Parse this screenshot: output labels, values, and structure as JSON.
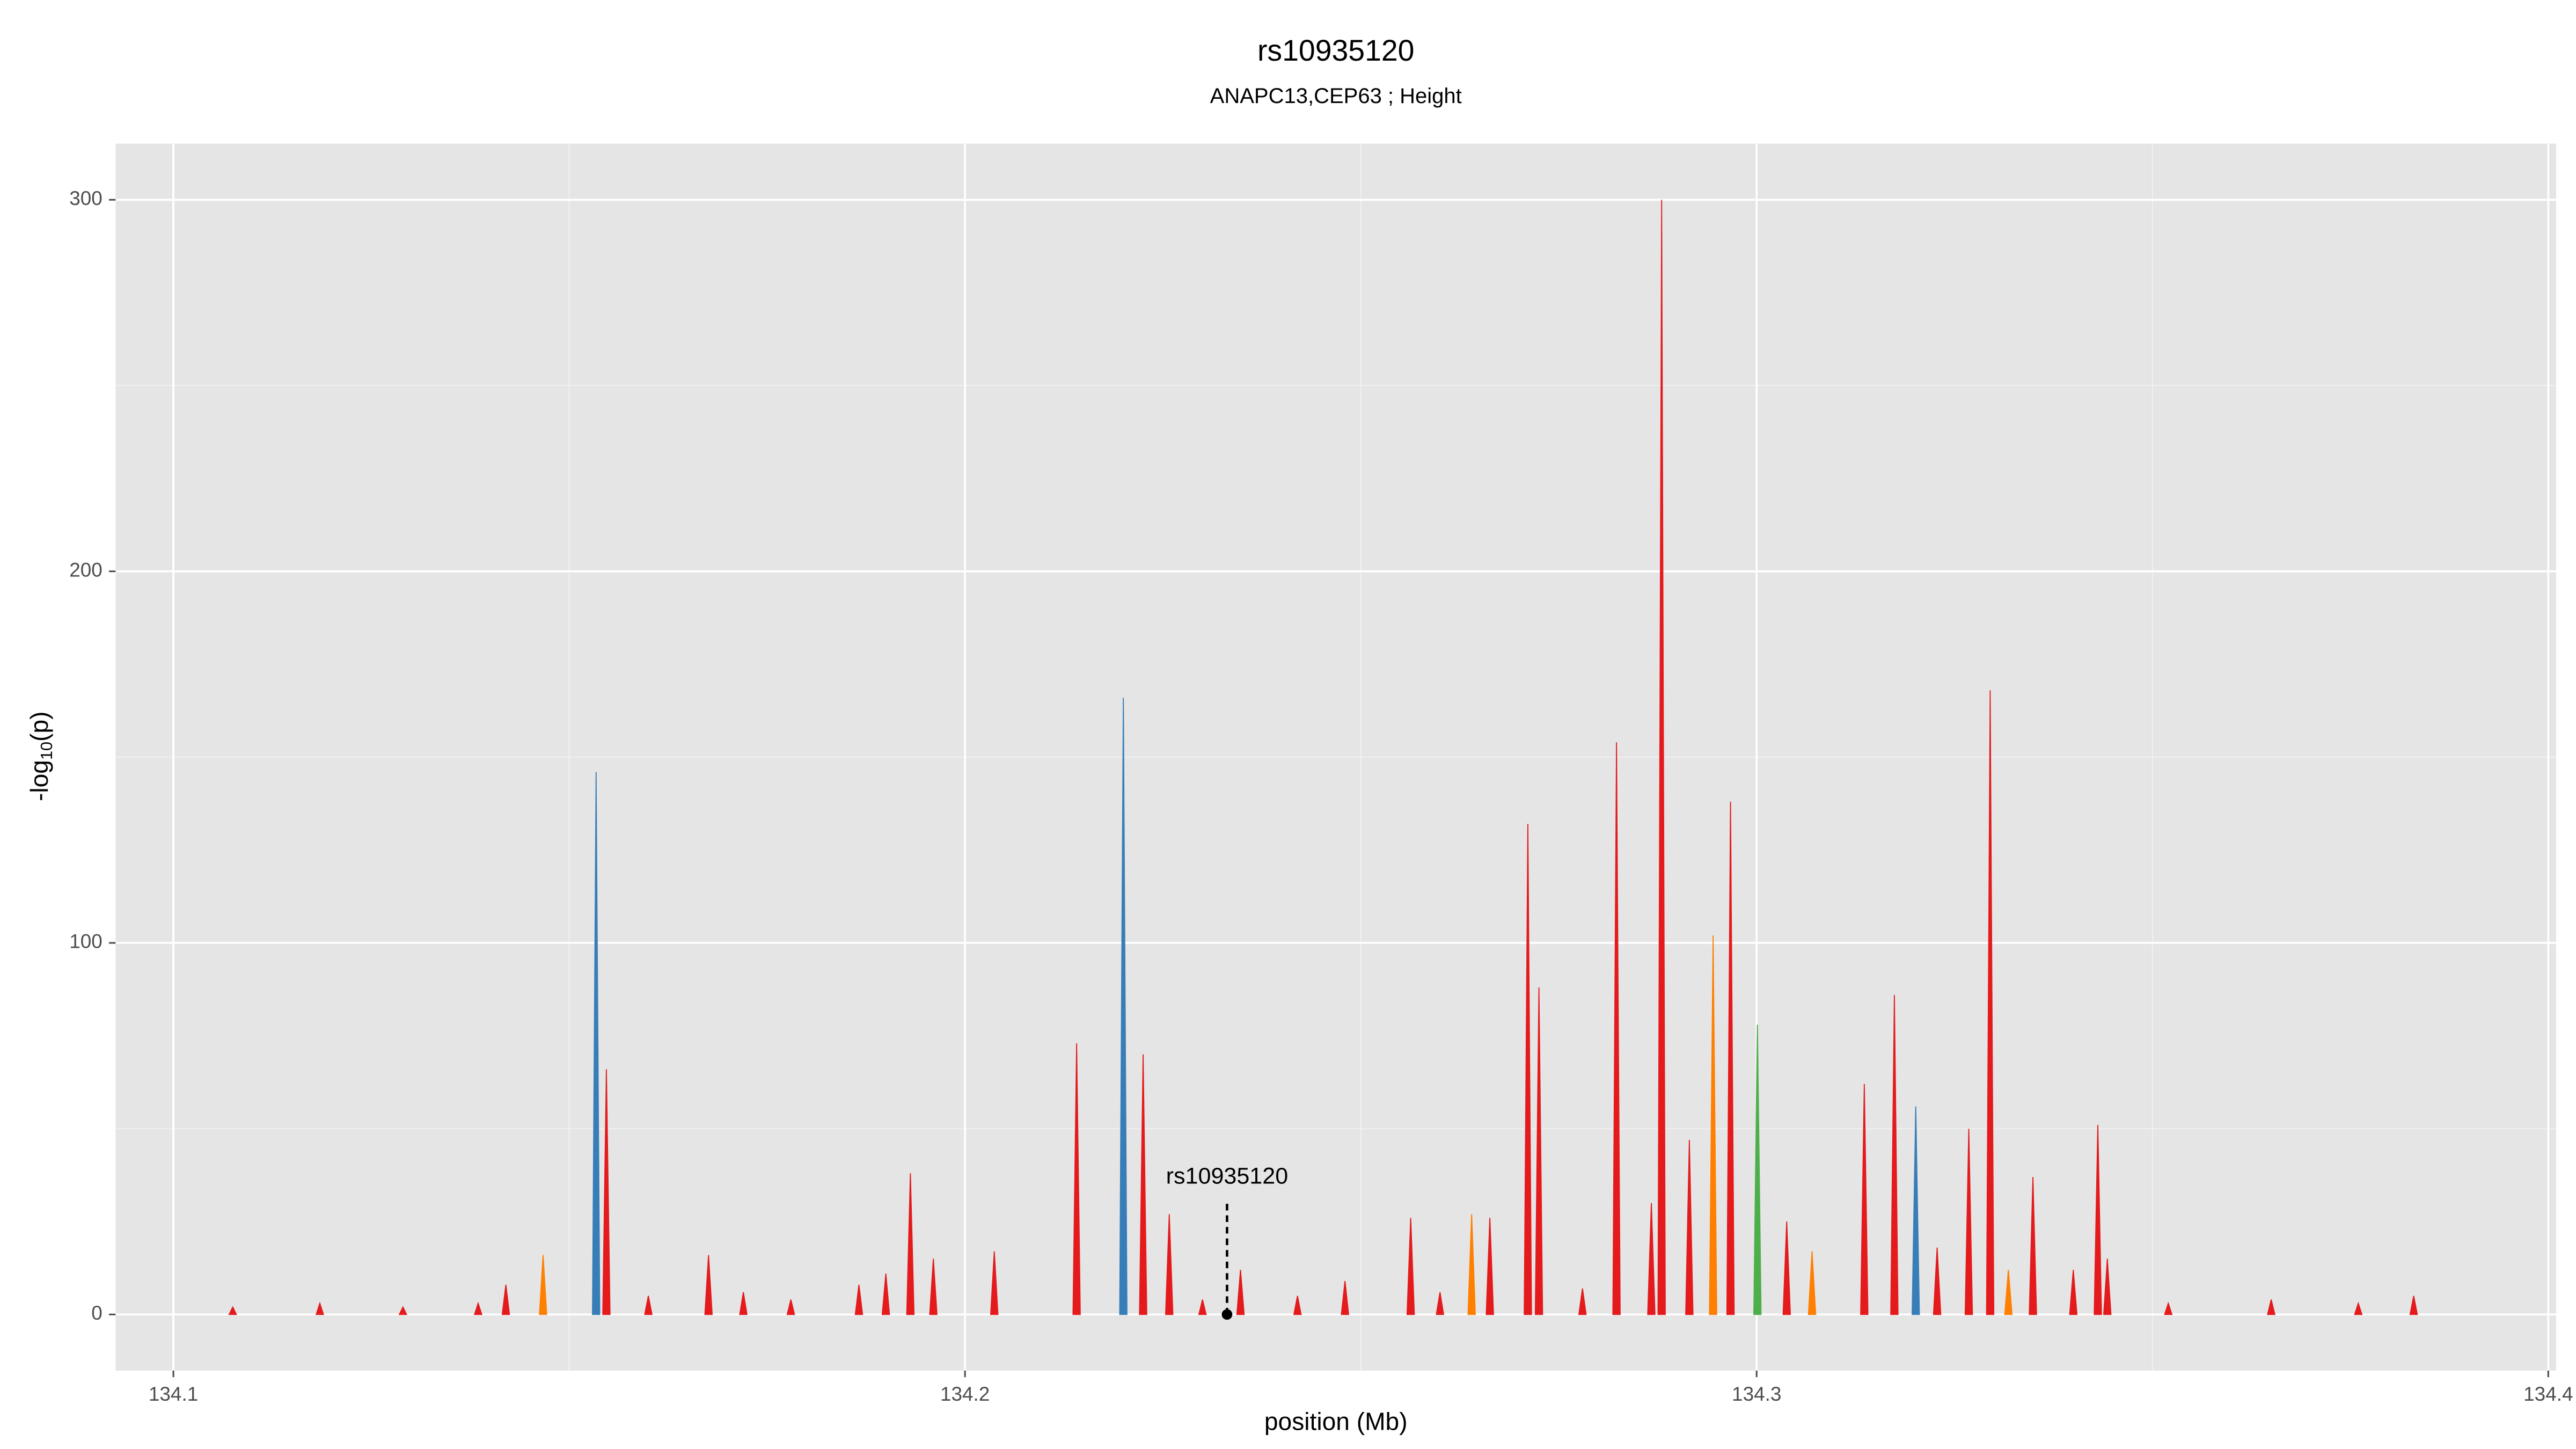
{
  "chart_data": {
    "type": "area",
    "title": "rs10935120",
    "subtitle": "ANAPC13,CEP63 ; Height",
    "xlabel": "position (Mb)",
    "ylabel": [
      "-log",
      "10",
      "(p)"
    ],
    "xlim": [
      134.0927,
      134.401
    ],
    "ylim": [
      -15.1,
      315.1
    ],
    "xticks": [
      134.1,
      134.2,
      134.3,
      134.4
    ],
    "yticks": [
      0,
      100,
      200,
      300
    ],
    "grid": true,
    "series": [
      {
        "color": "#e41a1c",
        "x": [
          134.1075,
          134.1185,
          134.129,
          134.1385,
          134.142,
          134.1547,
          134.16,
          134.1676,
          134.172,
          134.178,
          134.1866,
          134.19,
          134.1931,
          134.196,
          134.2037,
          134.2141,
          134.2225,
          134.2258,
          134.23,
          134.2348,
          134.242,
          134.248,
          134.2563,
          134.26,
          134.2663,
          134.2711,
          134.2725,
          134.278,
          134.2823,
          134.2867,
          134.288,
          134.2915,
          134.2967,
          134.3038,
          134.3136,
          134.3174,
          134.3228,
          134.3268,
          134.3295,
          134.3349,
          134.34,
          134.3431,
          134.3443,
          134.352,
          134.365,
          134.376,
          134.383
        ],
        "values": [
          2,
          3,
          2,
          3,
          8,
          66,
          5,
          16,
          6,
          4,
          8,
          11,
          38,
          15,
          17,
          73,
          70,
          27,
          4,
          12,
          5,
          9,
          26,
          6,
          26,
          132,
          88,
          7,
          154,
          30,
          300,
          47,
          138,
          25,
          62,
          86,
          18,
          50,
          168,
          37,
          12,
          51,
          15,
          3,
          4,
          3,
          5
        ]
      },
      {
        "color": "#377eb8",
        "x": [
          134.1534,
          134.22,
          134.3201
        ],
        "values": [
          146,
          166,
          56
        ]
      },
      {
        "color": "#ff7f00",
        "x": [
          134.1467,
          134.264,
          134.2945,
          134.307,
          134.3318
        ],
        "values": [
          16,
          27,
          102,
          17,
          12
        ]
      },
      {
        "color": "#4daf4a",
        "x": [
          134.3001
        ],
        "values": [
          78
        ]
      }
    ],
    "annotation": {
      "text": "rs10935120",
      "x": 134.2331,
      "y": 0
    }
  }
}
